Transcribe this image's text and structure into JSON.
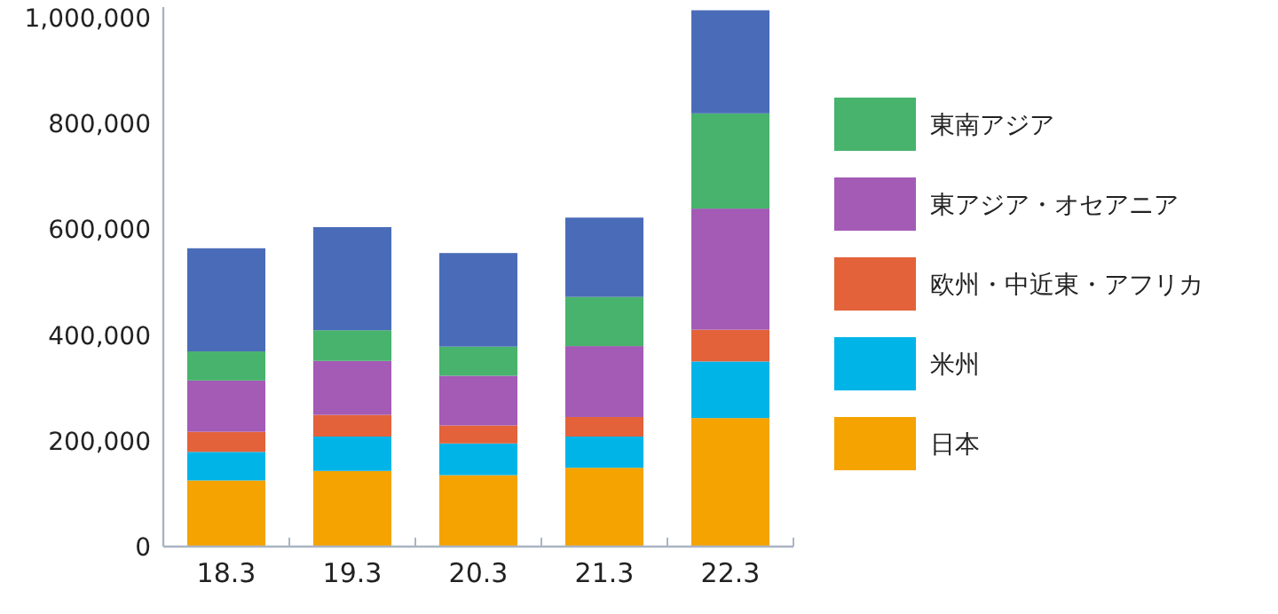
{
  "chart_data": {
    "type": "bar",
    "stacked": true,
    "categories": [
      "18.3",
      "19.3",
      "20.3",
      "21.3",
      "22.3"
    ],
    "series": [
      {
        "name": "日本",
        "color": "#f5a300",
        "values": [
          125000,
          143000,
          135000,
          149000,
          243000
        ]
      },
      {
        "name": "米州",
        "color": "#00b4e8",
        "values": [
          54000,
          65000,
          60000,
          59000,
          107000
        ]
      },
      {
        "name": "欧州・中近東・アフリカ",
        "color": "#e3623a",
        "values": [
          38000,
          41000,
          34000,
          37000,
          60000
        ]
      },
      {
        "name": "東アジア・オセアニア",
        "color": "#a35bb5",
        "values": [
          97000,
          102000,
          94000,
          134000,
          229000
        ]
      },
      {
        "name": "東南アジア",
        "color": "#47b36c",
        "values": [
          55000,
          58000,
          55000,
          93000,
          180000
        ]
      },
      {
        "color": "#4a6cb8",
        "values": [
          195000,
          195000,
          177000,
          150000,
          195000
        ]
      }
    ],
    "ylim": [
      0,
      1020000
    ],
    "yticks": [
      {
        "value": 0,
        "label": "0"
      },
      {
        "value": 200000,
        "label": "200,000"
      },
      {
        "value": 400000,
        "label": "400,000"
      },
      {
        "value": 600000,
        "label": "600,000"
      },
      {
        "value": 800000,
        "label": "800,000"
      },
      {
        "value": 1000000,
        "label": "1,000,000"
      }
    ],
    "grid": false,
    "legend": "right"
  }
}
